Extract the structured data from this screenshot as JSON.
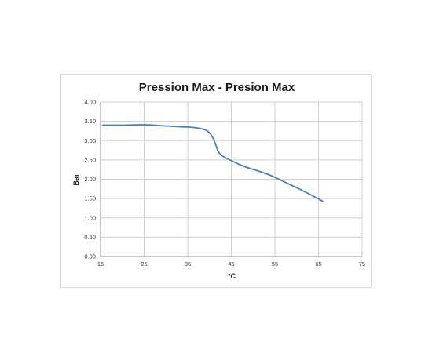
{
  "chart_data": {
    "type": "line",
    "title": "Pression Max   - Presion Max",
    "xlabel": "°C",
    "ylabel": "Bar",
    "xlim": [
      15,
      75
    ],
    "ylim": [
      0,
      4
    ],
    "x_ticks": [
      "15",
      "25",
      "35",
      "45",
      "55",
      "65",
      "75"
    ],
    "y_ticks": [
      "0.00",
      "0.50",
      "1.00",
      "1.50",
      "2.00",
      "2.50",
      "3.00",
      "3.50",
      "4.00"
    ],
    "grid": true,
    "legend": "none",
    "series": [
      {
        "color": "#4a7ebb",
        "x": [
          15.5,
          20,
          25,
          30,
          35,
          37,
          39,
          40,
          41,
          42,
          43,
          45,
          48,
          51,
          54,
          57,
          60,
          63,
          66
        ],
        "y": [
          3.4,
          3.4,
          3.41,
          3.38,
          3.35,
          3.33,
          3.28,
          3.2,
          3.02,
          2.72,
          2.6,
          2.48,
          2.33,
          2.22,
          2.1,
          1.94,
          1.78,
          1.61,
          1.43
        ]
      }
    ]
  }
}
